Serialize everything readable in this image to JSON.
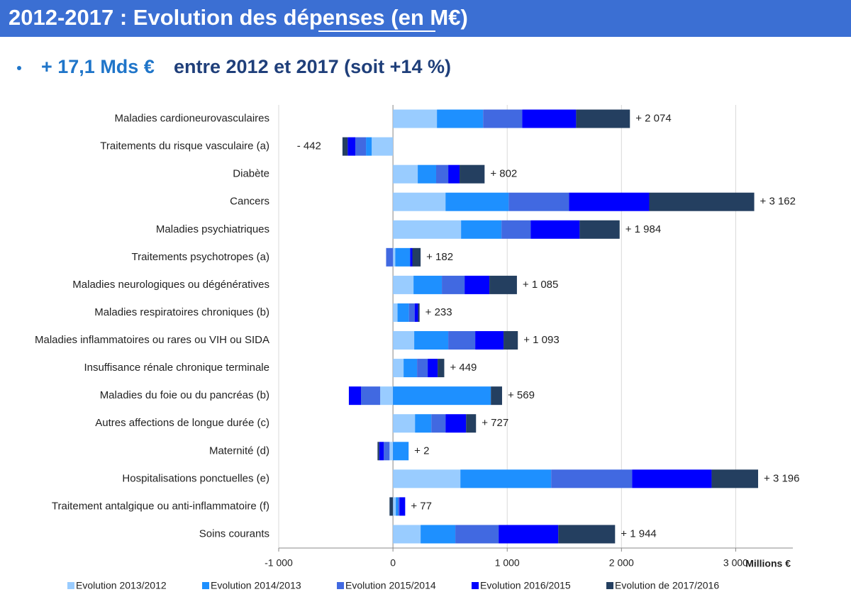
{
  "chart_data": {
    "type": "stacked_barh",
    "title": "2012-2017 : Evolution des dépenses  (en M€)",
    "subtitle": [
      "+ 17,1 Mds €",
      "entre 2012 et 2017 (soit +14 %)"
    ],
    "xlabel": "Millions €",
    "categories": [
      "Maladies cardioneurovasculaires",
      "Traitements du risque vasculaire (a)",
      "Diabète",
      "Cancers",
      "Maladies psychiatriques",
      "Traitements psychotropes (a)",
      "Maladies neurologiques ou dégénératives",
      "Maladies respiratoires chroniques (b)",
      "Maladies inflammatoires ou rares ou VIH ou SIDA",
      "Insuffisance rénale chronique terminale",
      "Maladies du foie ou du pancréas (b)",
      "Autres affections de longue durée (c)",
      "Maternité (d)",
      "Hospitalisations ponctuelles (e)",
      "Traitement antalgique ou anti-inflammatoire (f)",
      "Soins courants"
    ],
    "series": [
      {
        "name": "Evolution 2013/2012",
        "color": "#99ccff",
        "values": [
          385,
          -186,
          217,
          460,
          596,
          20,
          180,
          40,
          186,
          93,
          -112,
          193,
          -30,
          590,
          25,
          242
        ]
      },
      {
        "name": "Evolution 2014/2013",
        "color": "#1e90ff",
        "values": [
          404,
          -50,
          161,
          553,
          354,
          130,
          248,
          100,
          298,
          118,
          857,
          143,
          137,
          795,
          20,
          304
        ]
      },
      {
        "name": "Evolution 2015/2014",
        "color": "#4169e1",
        "values": [
          342,
          -93,
          106,
          528,
          255,
          -60,
          199,
          50,
          236,
          93,
          -168,
          124,
          -50,
          708,
          12,
          379
        ]
      },
      {
        "name": "Evolution 2016/2015",
        "color": "#0000ff",
        "values": [
          472,
          -68,
          99,
          702,
          429,
          20,
          217,
          30,
          248,
          87,
          -106,
          180,
          -40,
          696,
          50,
          522
        ]
      },
      {
        "name": "Evolution de 2017/2016",
        "color": "#243f60",
        "values": [
          471,
          -45,
          219,
          919,
          350,
          72,
          241,
          13,
          125,
          58,
          98,
          87,
          -15,
          407,
          -30,
          497
        ]
      }
    ],
    "totals": [
      2074,
      -442,
      802,
      3162,
      1984,
      182,
      1085,
      233,
      1093,
      449,
      569,
      727,
      2,
      3196,
      77,
      1944
    ],
    "total_labels": [
      "+ 2 074",
      "- 442",
      "+ 802",
      "+ 3 162",
      "+ 1 984",
      "+ 182",
      "+ 1 085",
      "+ 233",
      "+ 1 093",
      "+ 449",
      "+ 569",
      "+ 727",
      "+ 2",
      "+ 3 196",
      "+ 77",
      "+ 1 944"
    ],
    "xlim": [
      -1000,
      3500
    ],
    "xticks": [
      {
        "value": -1000,
        "label": "-1 000"
      },
      0,
      {
        "value": 1000,
        "label": "1 000"
      },
      {
        "value": 2000,
        "label": "2 000"
      },
      {
        "value": 3000,
        "label": "3 000"
      }
    ],
    "grid": true,
    "legend": "bottom"
  }
}
